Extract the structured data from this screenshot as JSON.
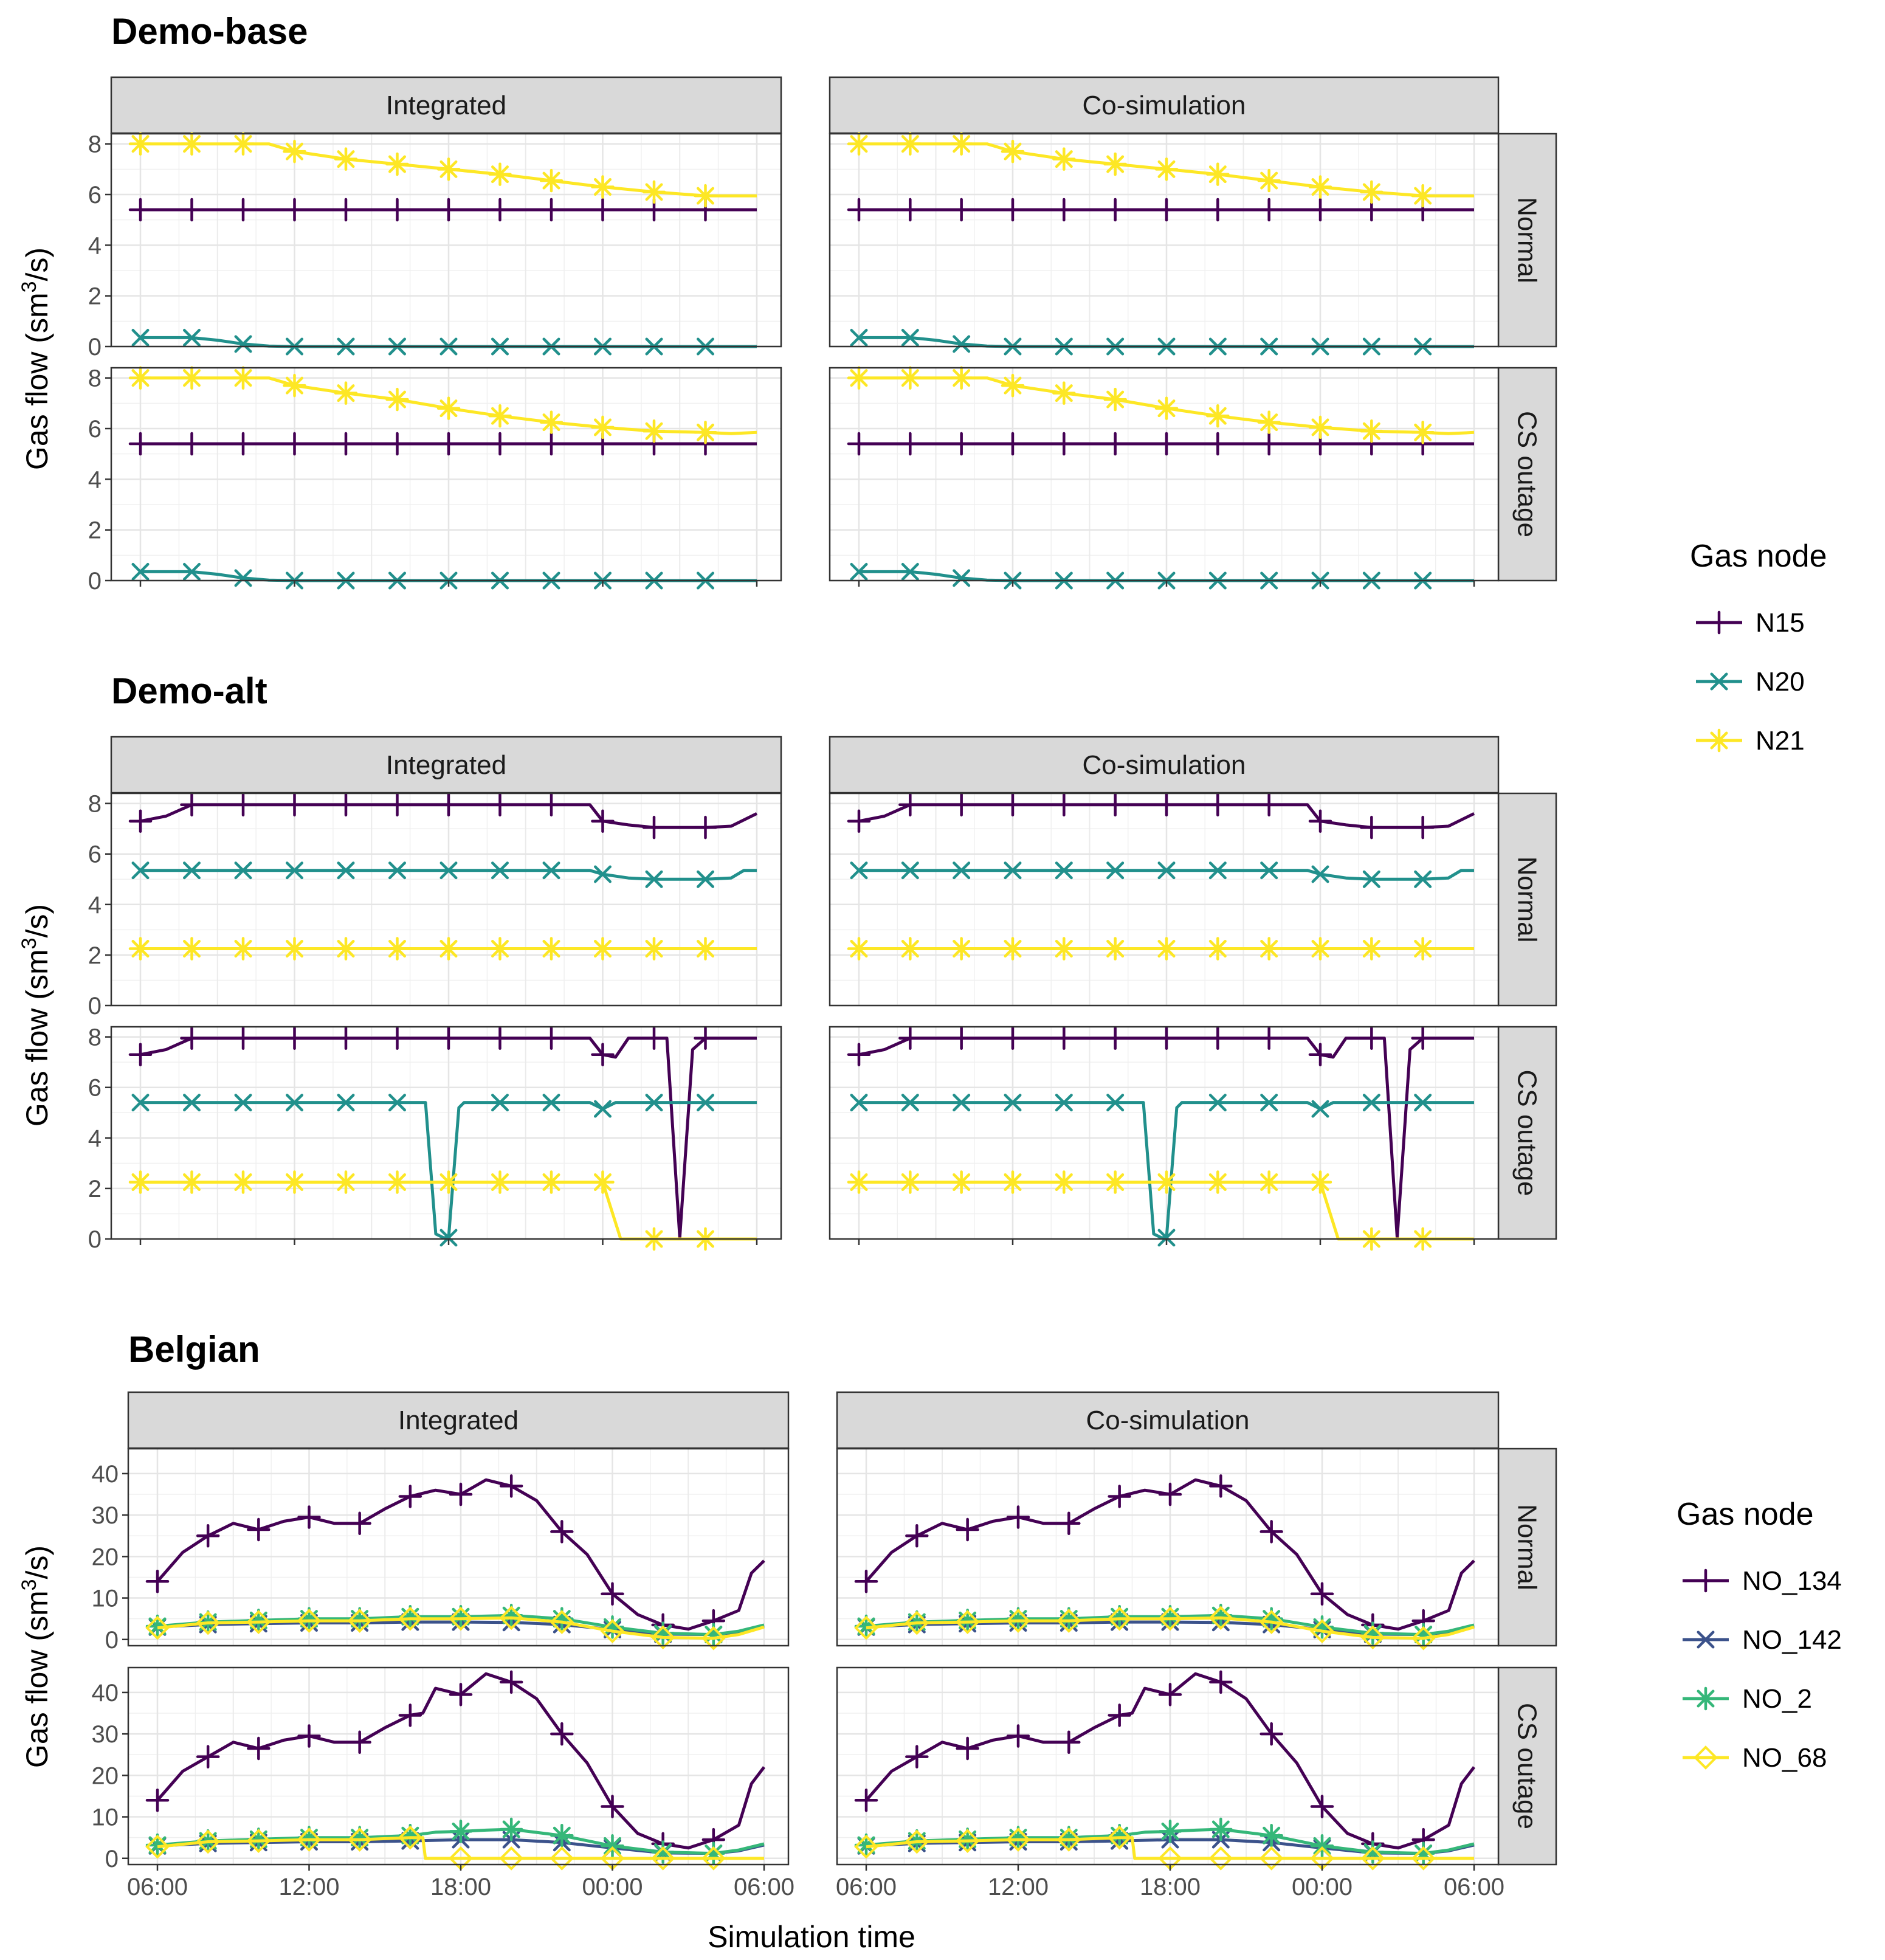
{
  "chart_data": {
    "type": "line",
    "y_axis_label_base": "Gas flow (sm",
    "y_axis_label_sup": "3",
    "y_axis_label_end": "/s)",
    "x_axis_label": "Simulation time",
    "x_tick_labels": [
      "06:00",
      "12:00",
      "18:00",
      "00:00",
      "06:00"
    ],
    "x_hours": [
      0,
      6,
      12,
      18,
      24
    ],
    "column_labels": [
      "Integrated",
      "Co-simulation"
    ],
    "row_labels": [
      "Normal",
      "CS outage"
    ],
    "grid": true,
    "facet_groups": [
      {
        "title": "Demo-base",
        "legend_title": "Gas node",
        "ylim": [
          0,
          8.4
        ],
        "y_ticks": [
          0,
          2,
          4,
          6,
          8
        ],
        "series_names": [
          "N15",
          "N20",
          "N21"
        ],
        "series_colors": [
          "#440154",
          "#21908C",
          "#FDE725"
        ],
        "series_markers": [
          "plus",
          "cross",
          "asterisk"
        ],
        "panels": {
          "Normal": [
            {
              "name": "N15",
              "x": [
                0,
                24
              ],
              "y": [
                5.4,
                5.4
              ]
            },
            {
              "name": "N20",
              "x": [
                0,
                2,
                3,
                4,
                5,
                6,
                24
              ],
              "y": [
                0.35,
                0.35,
                0.25,
                0.1,
                0.02,
                0,
                0
              ]
            },
            {
              "name": "N21",
              "x": [
                0,
                4,
                5,
                6,
                8,
                12,
                14,
                16,
                18,
                20,
                22,
                23,
                24
              ],
              "y": [
                8,
                8,
                8,
                7.7,
                7.4,
                7.0,
                6.8,
                6.55,
                6.3,
                6.1,
                5.95,
                5.95,
                5.95
              ]
            }
          ],
          "CS outage": [
            {
              "name": "N15",
              "x": [
                0,
                24
              ],
              "y": [
                5.4,
                5.4
              ]
            },
            {
              "name": "N20",
              "x": [
                0,
                2,
                3,
                4,
                5,
                6,
                24
              ],
              "y": [
                0.35,
                0.35,
                0.25,
                0.1,
                0.02,
                0,
                0
              ]
            },
            {
              "name": "N21",
              "x": [
                0,
                4,
                5,
                6,
                8,
                10,
                12,
                14,
                16,
                18,
                20,
                22,
                23,
                24
              ],
              "y": [
                8,
                8,
                8,
                7.7,
                7.4,
                7.15,
                6.8,
                6.5,
                6.25,
                6.05,
                5.9,
                5.85,
                5.8,
                5.85
              ]
            }
          ]
        }
      },
      {
        "title": "Demo-alt",
        "legend_title": "",
        "ylim": [
          0,
          8.4
        ],
        "y_ticks": [
          0,
          2,
          4,
          6,
          8
        ],
        "series_names": [
          "N15",
          "N20",
          "N21"
        ],
        "series_colors": [
          "#440154",
          "#21908C",
          "#FDE725"
        ],
        "series_markers": [
          "plus",
          "cross",
          "asterisk"
        ],
        "panels": {
          "Normal": [
            {
              "name": "N15",
              "x": [
                0,
                1,
                2,
                17,
                17.5,
                18,
                19,
                20,
                22,
                23,
                24
              ],
              "y": [
                7.3,
                7.5,
                7.95,
                7.95,
                7.95,
                7.3,
                7.15,
                7.05,
                7.05,
                7.1,
                7.6
              ]
            },
            {
              "name": "N20",
              "x": [
                0,
                17.5,
                18,
                19,
                20,
                22,
                23,
                23.5,
                24
              ],
              "y": [
                5.35,
                5.35,
                5.2,
                5.05,
                5.0,
                5.0,
                5.05,
                5.35,
                5.35
              ]
            },
            {
              "name": "N21",
              "x": [
                0,
                24
              ],
              "y": [
                2.25,
                2.25
              ]
            }
          ],
          "CS outage": [
            {
              "name": "N15",
              "x": [
                0,
                1,
                2,
                17,
                17.5,
                18,
                18.5,
                19,
                20,
                20.5,
                21,
                21.5,
                22,
                24
              ],
              "y": [
                7.3,
                7.5,
                7.95,
                7.95,
                7.95,
                7.3,
                7.2,
                7.95,
                7.95,
                7.95,
                0.05,
                7.5,
                7.95,
                7.95
              ]
            },
            {
              "name": "N20",
              "x": [
                0,
                11,
                11.1,
                11.5,
                11.8,
                12,
                12.4,
                12.6,
                17.5,
                18,
                18.5,
                19,
                24
              ],
              "y": [
                5.4,
                5.4,
                5.4,
                0.2,
                0.05,
                0.05,
                5.2,
                5.4,
                5.4,
                5.15,
                5.4,
                5.4,
                5.4
              ]
            },
            {
              "name": "N21",
              "x": [
                0,
                18,
                18.7,
                24
              ],
              "y": [
                2.25,
                2.25,
                0,
                0
              ]
            }
          ]
        }
      },
      {
        "title": "Belgian",
        "legend_title": "Gas node",
        "ylim": [
          -1.5,
          46
        ],
        "y_ticks": [
          0,
          10,
          20,
          30,
          40
        ],
        "series_names": [
          "NO_134",
          "NO_142",
          "NO_2",
          "NO_68"
        ],
        "series_colors": [
          "#440154",
          "#3B528B",
          "#35B779",
          "#FDE725"
        ],
        "series_markers": [
          "plus",
          "cross",
          "asterisk",
          "diamond"
        ],
        "panels": {
          "Normal": [
            {
              "name": "NO_134",
              "x": [
                0,
                1,
                2,
                3,
                4,
                5,
                6,
                7,
                8,
                9,
                10,
                11,
                12,
                13,
                14,
                15,
                16,
                17,
                18,
                19,
                20,
                21,
                22,
                23,
                23.5,
                24
              ],
              "y": [
                14,
                21,
                25,
                28,
                26.5,
                28.5,
                29.5,
                28,
                28,
                31.5,
                34.5,
                36,
                35,
                38.5,
                37,
                33.5,
                26,
                20.5,
                11,
                6,
                3.5,
                2.5,
                4.5,
                7,
                16,
                19
              ]
            },
            {
              "name": "NO_142",
              "x": [
                0,
                2,
                4,
                6,
                8,
                10,
                12,
                14,
                16,
                18,
                20,
                22,
                23,
                24
              ],
              "y": [
                3,
                3.6,
                3.8,
                4,
                4,
                4.2,
                4.2,
                4.1,
                3.6,
                2.4,
                1.3,
                1.2,
                1.8,
                3.2
              ]
            },
            {
              "name": "NO_2",
              "x": [
                0,
                2,
                4,
                6,
                8,
                10,
                12,
                14,
                16,
                18,
                20,
                22,
                23,
                24
              ],
              "y": [
                3.2,
                4.2,
                4.6,
                5,
                5,
                5.5,
                5.5,
                5.8,
                5,
                3,
                1.5,
                1.2,
                2,
                3.5
              ]
            },
            {
              "name": "NO_68",
              "x": [
                0,
                2,
                4,
                6,
                8,
                10,
                12,
                14,
                16,
                18,
                20,
                22,
                23,
                24
              ],
              "y": [
                2.8,
                4,
                4.2,
                4.5,
                4.5,
                5,
                5,
                5.2,
                4.2,
                2,
                0.5,
                0.3,
                1.2,
                3
              ]
            }
          ],
          "CS outage": [
            {
              "name": "NO_134",
              "x": [
                0,
                1,
                2,
                3,
                4,
                5,
                6,
                7,
                8,
                9,
                10,
                10.5,
                11,
                12,
                13,
                14,
                15,
                16,
                17,
                18,
                19,
                20,
                21,
                22,
                23,
                23.5,
                24
              ],
              "y": [
                14,
                21,
                24.5,
                28,
                26.5,
                28.5,
                29.5,
                28,
                28,
                31.5,
                34.5,
                35,
                41,
                39.5,
                44.5,
                42.5,
                38.5,
                30,
                23,
                12.5,
                6,
                3.5,
                2.5,
                4.5,
                8,
                18,
                22
              ]
            },
            {
              "name": "NO_142",
              "x": [
                0,
                2,
                4,
                6,
                8,
                10,
                12,
                14,
                16,
                18,
                20,
                22,
                23,
                24
              ],
              "y": [
                3,
                3.6,
                3.8,
                4,
                4,
                4.2,
                4.5,
                4.5,
                3.8,
                2.5,
                1.3,
                1.2,
                1.8,
                3.2
              ]
            },
            {
              "name": "NO_2",
              "x": [
                0,
                2,
                4,
                6,
                8,
                10,
                11,
                12,
                13,
                14,
                16,
                18,
                20,
                22,
                23,
                24
              ],
              "y": [
                3.2,
                4.2,
                4.6,
                5,
                5,
                5.5,
                6.3,
                6.5,
                6.8,
                7,
                5.5,
                3,
                1.5,
                1.2,
                2,
                3.5
              ]
            },
            {
              "name": "NO_68",
              "x": [
                0,
                2,
                4,
                6,
                8,
                10,
                10.5,
                10.6,
                24
              ],
              "y": [
                2.8,
                4,
                4.2,
                4.5,
                4.5,
                5,
                5,
                0,
                0
              ]
            }
          ]
        }
      }
    ]
  }
}
